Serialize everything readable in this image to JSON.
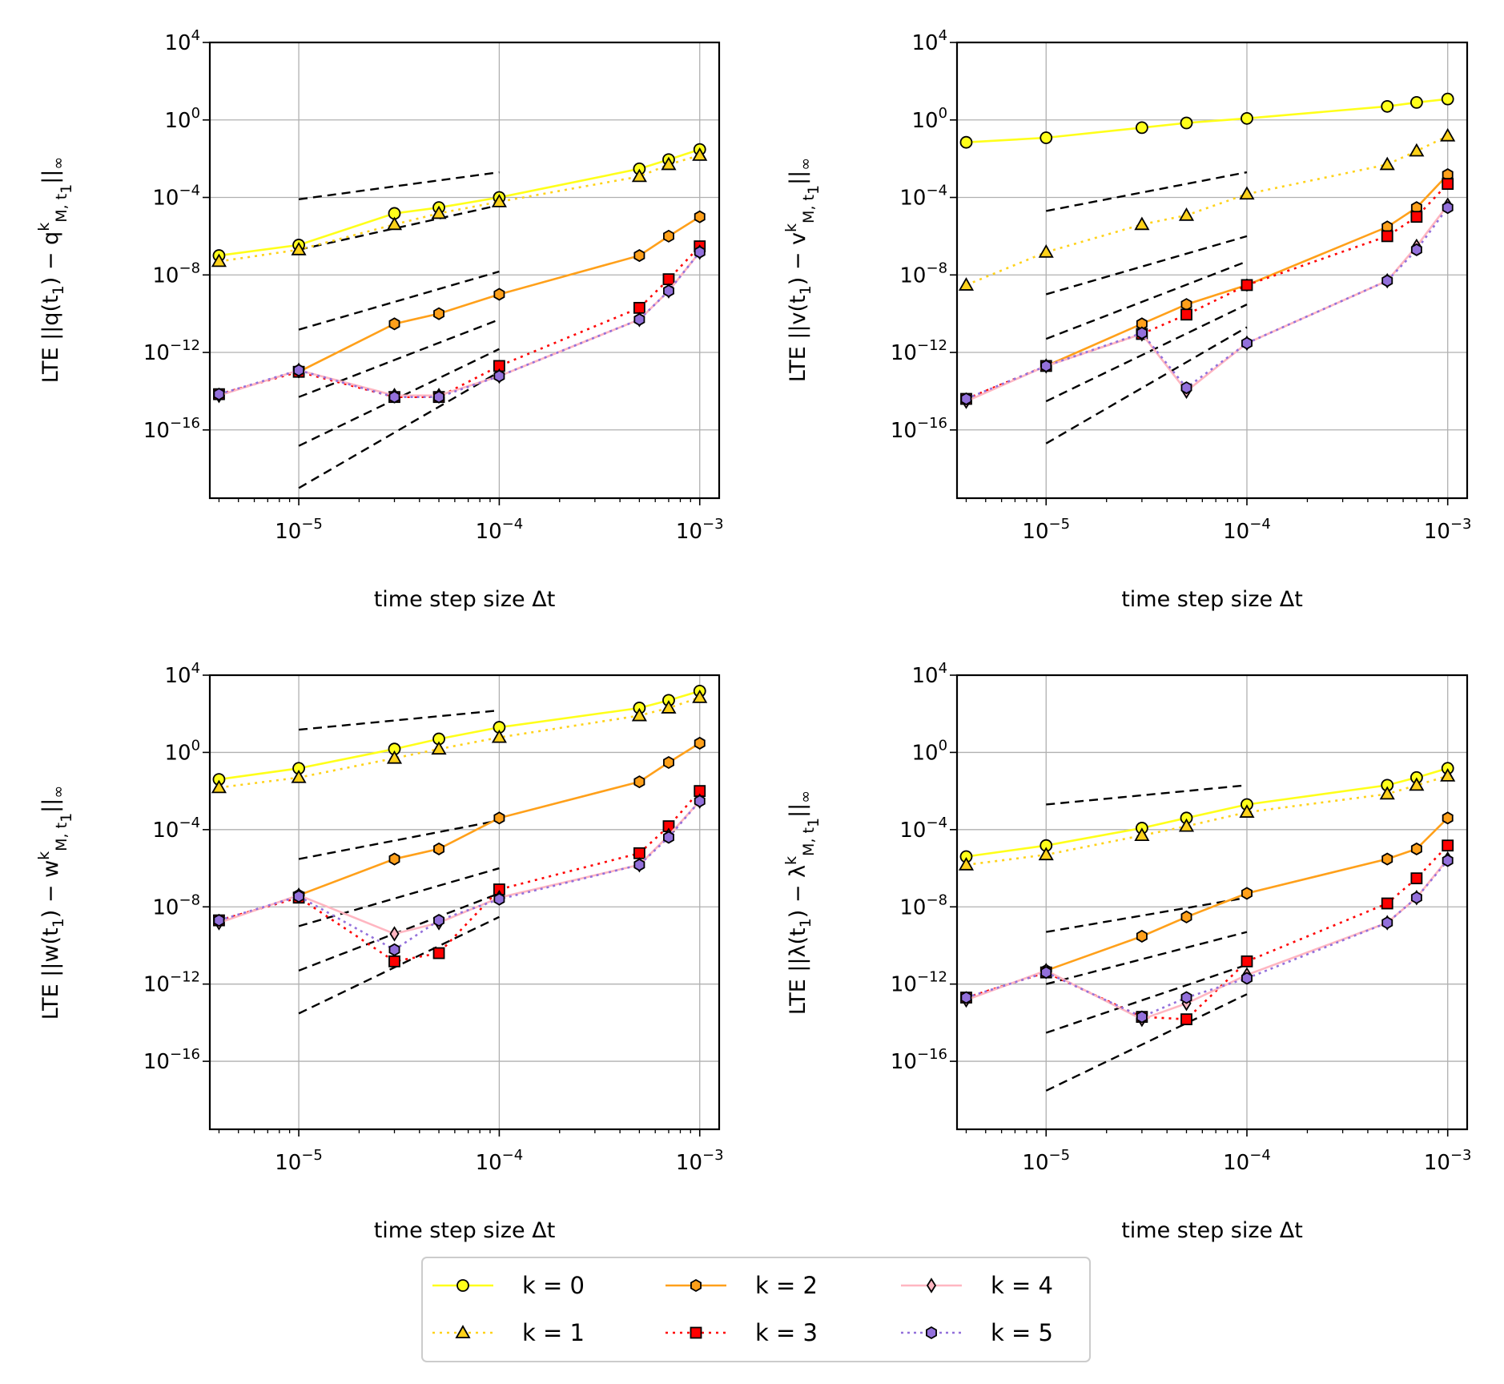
{
  "colors": {
    "k0": "#ffff1a",
    "k1": "#ffd21a",
    "k2": "#ffa01a",
    "k3": "#ff0000",
    "k4": "#ffb6c1",
    "k5": "#9370db",
    "ref": "#000000",
    "grid": "#b0b0b0"
  },
  "legend": {
    "entries": [
      {
        "key": "k0",
        "label": "k = 0"
      },
      {
        "key": "k1",
        "label": "k = 1"
      },
      {
        "key": "k2",
        "label": "k = 2"
      },
      {
        "key": "k3",
        "label": "k = 3"
      },
      {
        "key": "k4",
        "label": "k = 4"
      },
      {
        "key": "k5",
        "label": "k = 5"
      }
    ]
  },
  "chart_data": [
    {
      "type": "line",
      "ylabel_parts": [
        "LTE ||q(t",
        "1",
        ") − q",
        "k",
        "M, t",
        "1",
        "||",
        "∞"
      ],
      "xlabel": "time step size Δt",
      "xscale": "log",
      "yscale": "log",
      "xlim": [
        3.6e-06,
        0.00125
      ],
      "ylim": [
        3e-20,
        10000.0
      ],
      "xticks": [
        {
          "base": "10",
          "exp": "−5",
          "value": 1e-05
        },
        {
          "base": "10",
          "exp": "−4",
          "value": 0.0001
        },
        {
          "base": "10",
          "exp": "−3",
          "value": 0.001
        }
      ],
      "yticks": [
        {
          "base": "10",
          "exp": "4",
          "value": 10000.0
        },
        {
          "base": "10",
          "exp": "0",
          "value": 1
        },
        {
          "base": "10",
          "exp": "−4",
          "value": 0.0001
        },
        {
          "base": "10",
          "exp": "−8",
          "value": 1e-08
        },
        {
          "base": "10",
          "exp": "−12",
          "value": 1e-12
        },
        {
          "base": "10",
          "exp": "−16",
          "value": 1e-16
        }
      ],
      "x": [
        4e-06,
        1e-05,
        3e-05,
        5e-05,
        0.0001,
        0.0005,
        0.0007,
        0.001
      ],
      "series": [
        {
          "key": "k0",
          "name": "k = 0",
          "values": [
            1e-07,
            3.5e-07,
            1.5e-05,
            3e-05,
            0.0001,
            0.003,
            0.009,
            0.03
          ]
        },
        {
          "key": "k1",
          "name": "k = 1",
          "values": [
            5e-08,
            2e-07,
            4e-06,
            1.5e-05,
            6e-05,
            0.0012,
            0.005,
            0.015
          ]
        },
        {
          "key": "k2",
          "name": "k = 2",
          "values": [
            null,
            1e-13,
            3e-11,
            1e-10,
            1e-09,
            1e-07,
            1e-06,
            1e-05
          ]
        },
        {
          "key": "k3",
          "name": "k = 3",
          "values": [
            7e-15,
            1e-13,
            5e-15,
            5e-15,
            2e-13,
            2e-10,
            6e-09,
            3e-07
          ]
        },
        {
          "key": "k4",
          "name": "k = 4",
          "values": [
            6e-15,
            1.2e-13,
            6e-15,
            6e-15,
            6e-14,
            5e-11,
            1.5e-09,
            1.5e-07
          ]
        },
        {
          "key": "k5",
          "name": "k = 5",
          "values": [
            7e-15,
            1.2e-13,
            5e-15,
            5e-15,
            6e-14,
            5e-11,
            1.5e-09,
            1.5e-07
          ]
        }
      ],
      "reference_lines": [
        {
          "x": [
            1e-05,
            0.0001
          ],
          "y": [
            8e-05,
            0.002
          ]
        },
        {
          "x": [
            1e-05,
            0.0001
          ],
          "y": [
            2e-07,
            4e-05
          ]
        },
        {
          "x": [
            1e-05,
            0.0001
          ],
          "y": [
            1.5e-11,
            1.5e-08
          ]
        },
        {
          "x": [
            1e-05,
            0.0001
          ],
          "y": [
            5e-15,
            5e-11
          ]
        },
        {
          "x": [
            1e-05,
            0.0001
          ],
          "y": [
            1.5e-17,
            1.5e-12
          ]
        },
        {
          "x": [
            1e-05,
            0.0001
          ],
          "y": [
            1e-19,
            1e-13
          ]
        }
      ]
    },
    {
      "type": "line",
      "ylabel_parts": [
        "LTE ||v(t",
        "1",
        ") − v",
        "k",
        "M, t",
        "1",
        "||",
        "∞"
      ],
      "xlabel": "time step size Δt",
      "xscale": "log",
      "yscale": "log",
      "xlim": [
        3.6e-06,
        0.00125
      ],
      "ylim": [
        3e-20,
        10000.0
      ],
      "xticks": [
        {
          "base": "10",
          "exp": "−5",
          "value": 1e-05
        },
        {
          "base": "10",
          "exp": "−4",
          "value": 0.0001
        },
        {
          "base": "10",
          "exp": "−3",
          "value": 0.001
        }
      ],
      "yticks": [
        {
          "base": "10",
          "exp": "4",
          "value": 10000.0
        },
        {
          "base": "10",
          "exp": "0",
          "value": 1
        },
        {
          "base": "10",
          "exp": "−4",
          "value": 0.0001
        },
        {
          "base": "10",
          "exp": "−8",
          "value": 1e-08
        },
        {
          "base": "10",
          "exp": "−12",
          "value": 1e-12
        },
        {
          "base": "10",
          "exp": "−16",
          "value": 1e-16
        }
      ],
      "x": [
        4e-06,
        1e-05,
        3e-05,
        5e-05,
        0.0001,
        0.0005,
        0.0007,
        0.001
      ],
      "series": [
        {
          "key": "k0",
          "name": "k = 0",
          "values": [
            0.07,
            0.12,
            0.4,
            0.7,
            1.2,
            5,
            8,
            12
          ]
        },
        {
          "key": "k1",
          "name": "k = 1",
          "values": [
            3e-09,
            1.5e-07,
            4e-06,
            1.2e-05,
            0.00015,
            0.005,
            0.025,
            0.15
          ]
        },
        {
          "key": "k2",
          "name": "k = 2",
          "values": [
            null,
            2e-13,
            3e-11,
            3e-10,
            3e-09,
            3e-06,
            3e-05,
            0.0015
          ]
        },
        {
          "key": "k3",
          "name": "k = 3",
          "values": [
            4e-15,
            2e-13,
            9e-12,
            9e-11,
            3e-09,
            1e-06,
            1e-05,
            0.0005
          ]
        },
        {
          "key": "k4",
          "name": "k = 4",
          "values": [
            3e-15,
            2e-13,
            9e-12,
            1e-14,
            3e-12,
            5e-09,
            3e-07,
            4e-05
          ]
        },
        {
          "key": "k5",
          "name": "k = 5",
          "values": [
            4e-15,
            2e-13,
            1e-11,
            1.5e-14,
            3e-12,
            5e-09,
            2e-07,
            3e-05
          ]
        }
      ],
      "reference_lines": [
        {
          "x": [
            1e-05,
            0.0001
          ],
          "y": [
            2e-05,
            0.002
          ]
        },
        {
          "x": [
            1e-05,
            0.0001
          ],
          "y": [
            1e-09,
            1e-06
          ]
        },
        {
          "x": [
            1e-05,
            0.0001
          ],
          "y": [
            5e-12,
            5e-08
          ]
        },
        {
          "x": [
            1e-05,
            0.0001
          ],
          "y": [
            3e-15,
            3e-10
          ]
        },
        {
          "x": [
            1e-05,
            0.0001
          ],
          "y": [
            2e-17,
            2e-11
          ]
        }
      ]
    },
    {
      "type": "line",
      "ylabel_parts": [
        "LTE ||w(t",
        "1",
        ") − w",
        "k",
        "M, t",
        "1",
        "||",
        "∞"
      ],
      "xlabel": "time step size Δt",
      "xscale": "log",
      "yscale": "log",
      "xlim": [
        3.6e-06,
        0.00125
      ],
      "ylim": [
        3e-20,
        10000.0
      ],
      "xticks": [
        {
          "base": "10",
          "exp": "−5",
          "value": 1e-05
        },
        {
          "base": "10",
          "exp": "−4",
          "value": 0.0001
        },
        {
          "base": "10",
          "exp": "−3",
          "value": 0.001
        }
      ],
      "yticks": [
        {
          "base": "10",
          "exp": "4",
          "value": 10000.0
        },
        {
          "base": "10",
          "exp": "0",
          "value": 1
        },
        {
          "base": "10",
          "exp": "−4",
          "value": 0.0001
        },
        {
          "base": "10",
          "exp": "−8",
          "value": 1e-08
        },
        {
          "base": "10",
          "exp": "−12",
          "value": 1e-12
        },
        {
          "base": "10",
          "exp": "−16",
          "value": 1e-16
        }
      ],
      "x": [
        4e-06,
        1e-05,
        3e-05,
        5e-05,
        0.0001,
        0.0005,
        0.0007,
        0.001
      ],
      "series": [
        {
          "key": "k0",
          "name": "k = 0",
          "values": [
            0.04,
            0.15,
            1.5,
            5,
            20,
            200,
            500,
            1500
          ]
        },
        {
          "key": "k1",
          "name": "k = 1",
          "values": [
            0.015,
            0.05,
            0.5,
            1.5,
            6,
            80,
            200,
            700
          ]
        },
        {
          "key": "k2",
          "name": "k = 2",
          "values": [
            null,
            4e-08,
            3e-06,
            1e-05,
            0.0004,
            0.03,
            0.3,
            3
          ]
        },
        {
          "key": "k3",
          "name": "k = 3",
          "values": [
            2e-09,
            3e-08,
            1.5e-11,
            4e-11,
            8e-08,
            6e-06,
            0.00015,
            0.01
          ]
        },
        {
          "key": "k4",
          "name": "k = 4",
          "values": [
            1.5e-09,
            4e-08,
            4e-10,
            1.5e-09,
            3e-08,
            1.5e-06,
            5e-05,
            0.003
          ]
        },
        {
          "key": "k5",
          "name": "k = 5",
          "values": [
            2e-09,
            3.5e-08,
            6e-11,
            2e-09,
            2.5e-08,
            1.5e-06,
            4e-05,
            0.003
          ]
        }
      ],
      "reference_lines": [
        {
          "x": [
            1e-05,
            0.0001
          ],
          "y": [
            15,
            150
          ]
        },
        {
          "x": [
            1e-05,
            0.0001
          ],
          "y": [
            3e-06,
            0.0003
          ]
        },
        {
          "x": [
            1e-05,
            0.0001
          ],
          "y": [
            1e-09,
            1e-06
          ]
        },
        {
          "x": [
            1e-05,
            0.0001
          ],
          "y": [
            5e-12,
            5e-08
          ]
        },
        {
          "x": [
            1e-05,
            0.0001
          ],
          "y": [
            3e-14,
            3e-09
          ]
        }
      ]
    },
    {
      "type": "line",
      "ylabel_parts": [
        "LTE ||λ(t",
        "1",
        ") − λ",
        "k",
        "M, t",
        "1",
        "||",
        "∞"
      ],
      "xlabel": "time step size Δt",
      "xscale": "log",
      "yscale": "log",
      "xlim": [
        3.6e-06,
        0.00125
      ],
      "ylim": [
        3e-20,
        10000.0
      ],
      "xticks": [
        {
          "base": "10",
          "exp": "−5",
          "value": 1e-05
        },
        {
          "base": "10",
          "exp": "−4",
          "value": 0.0001
        },
        {
          "base": "10",
          "exp": "−3",
          "value": 0.001
        }
      ],
      "yticks": [
        {
          "base": "10",
          "exp": "4",
          "value": 10000.0
        },
        {
          "base": "10",
          "exp": "0",
          "value": 1
        },
        {
          "base": "10",
          "exp": "−4",
          "value": 0.0001
        },
        {
          "base": "10",
          "exp": "−8",
          "value": 1e-08
        },
        {
          "base": "10",
          "exp": "−12",
          "value": 1e-12
        },
        {
          "base": "10",
          "exp": "−16",
          "value": 1e-16
        }
      ],
      "x": [
        4e-06,
        1e-05,
        3e-05,
        5e-05,
        0.0001,
        0.0005,
        0.0007,
        0.001
      ],
      "series": [
        {
          "key": "k0",
          "name": "k = 0",
          "values": [
            4e-06,
            1.5e-05,
            0.00012,
            0.0004,
            0.002,
            0.02,
            0.05,
            0.15
          ]
        },
        {
          "key": "k1",
          "name": "k = 1",
          "values": [
            1.5e-06,
            5e-06,
            5e-05,
            0.00015,
            0.0008,
            0.007,
            0.02,
            0.06
          ]
        },
        {
          "key": "k2",
          "name": "k = 2",
          "values": [
            null,
            5e-12,
            3e-10,
            3e-09,
            5e-08,
            3e-06,
            1e-05,
            0.0004
          ]
        },
        {
          "key": "k3",
          "name": "k = 3",
          "values": [
            2e-13,
            4e-12,
            2e-14,
            1.5e-14,
            1.5e-11,
            1.5e-08,
            3e-07,
            1.5e-05
          ]
        },
        {
          "key": "k4",
          "name": "k = 4",
          "values": [
            1.5e-13,
            5e-12,
            1.5e-14,
            1e-13,
            3e-12,
            1.5e-09,
            3e-08,
            3e-06
          ]
        },
        {
          "key": "k5",
          "name": "k = 5",
          "values": [
            2e-13,
            4e-12,
            2e-14,
            2e-13,
            2e-12,
            1.5e-09,
            3e-08,
            2.5e-06
          ]
        }
      ],
      "reference_lines": [
        {
          "x": [
            1e-05,
            0.0001
          ],
          "y": [
            0.002,
            0.02
          ]
        },
        {
          "x": [
            1e-05,
            0.0001
          ],
          "y": [
            5e-10,
            3e-08
          ]
        },
        {
          "x": [
            1e-05,
            0.0001
          ],
          "y": [
            1e-12,
            5e-10
          ]
        },
        {
          "x": [
            1e-05,
            0.0001
          ],
          "y": [
            3e-15,
            1e-11
          ]
        },
        {
          "x": [
            1e-05,
            0.0001
          ],
          "y": [
            3e-18,
            3e-13
          ]
        }
      ]
    }
  ]
}
